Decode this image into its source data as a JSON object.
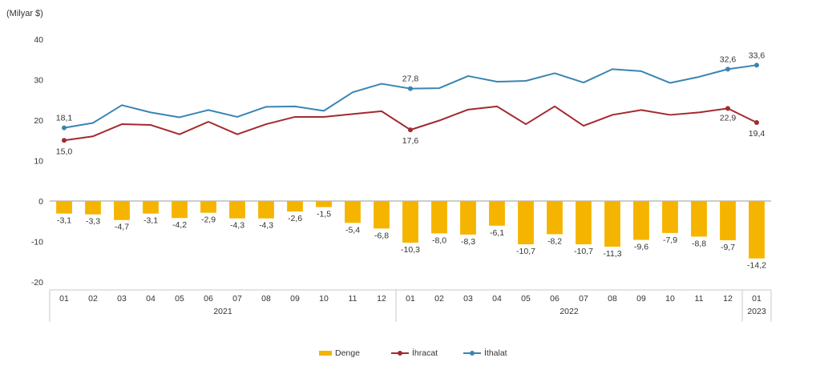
{
  "unit_label": "(Milyar $)",
  "chart_data": {
    "type": "bar+line",
    "categories": [
      "01",
      "02",
      "03",
      "04",
      "05",
      "06",
      "07",
      "08",
      "09",
      "10",
      "11",
      "12",
      "01",
      "02",
      "03",
      "04",
      "05",
      "06",
      "07",
      "08",
      "09",
      "10",
      "11",
      "12",
      "01"
    ],
    "year_groups": [
      {
        "label": "2021",
        "start": 0,
        "end": 11
      },
      {
        "label": "2022",
        "start": 12,
        "end": 23
      },
      {
        "label": "2023",
        "start": 24,
        "end": 24
      }
    ],
    "ylim": [
      -20,
      40
    ],
    "yticks": [
      -20,
      -10,
      0,
      10,
      20,
      30,
      40
    ],
    "series": [
      {
        "name": "Denge",
        "kind": "bar",
        "color": "#F5B400",
        "values": [
          -3.1,
          -3.3,
          -4.7,
          -3.1,
          -4.2,
          -2.9,
          -4.3,
          -4.3,
          -2.6,
          -1.5,
          -5.4,
          -6.8,
          -10.3,
          -8.0,
          -8.3,
          -6.1,
          -10.7,
          -8.2,
          -10.7,
          -11.3,
          -9.6,
          -7.9,
          -8.8,
          -9.7,
          -14.2
        ],
        "labels": [
          "-3,1",
          "-3,3",
          "-4,7",
          "-3,1",
          "-4,2",
          "-2,9",
          "-4,3",
          "-4,3",
          "-2,6",
          "-1,5",
          "-5,4",
          "-6,8",
          "-10,3",
          "-8,0",
          "-8,3",
          "-6,1",
          "-10,7",
          "-8,2",
          "-10,7",
          "-11,3",
          "-9,6",
          "-7,9",
          "-8,8",
          "-9,7",
          "-14,2"
        ]
      },
      {
        "name": "İhracat",
        "kind": "line",
        "color": "#A32A2E",
        "values": [
          15.0,
          16.0,
          19.0,
          18.8,
          16.5,
          19.6,
          16.5,
          19.0,
          20.8,
          20.8,
          21.5,
          22.2,
          17.6,
          19.9,
          22.6,
          23.4,
          19.0,
          23.4,
          18.6,
          21.3,
          22.5,
          21.3,
          21.9,
          22.9,
          19.4
        ],
        "point_labels": [
          {
            "i": 0,
            "text": "15,0"
          },
          {
            "i": 12,
            "text": "17,6"
          },
          {
            "i": 23,
            "text": "22,9"
          },
          {
            "i": 24,
            "text": "19,4"
          }
        ]
      },
      {
        "name": "İthalat",
        "kind": "line",
        "color": "#3A84B4",
        "values": [
          18.1,
          19.3,
          23.7,
          21.9,
          20.7,
          22.5,
          20.8,
          23.3,
          23.4,
          22.3,
          26.9,
          29.0,
          27.8,
          27.9,
          30.9,
          29.5,
          29.7,
          31.6,
          29.3,
          32.6,
          32.1,
          29.2,
          30.7,
          32.6,
          33.6
        ],
        "point_labels": [
          {
            "i": 0,
            "text": "18,1"
          },
          {
            "i": 12,
            "text": "27,8"
          },
          {
            "i": 23,
            "text": "32,6"
          },
          {
            "i": 24,
            "text": "33,6"
          }
        ]
      }
    ],
    "legend_position": "bottom",
    "grid": false
  }
}
